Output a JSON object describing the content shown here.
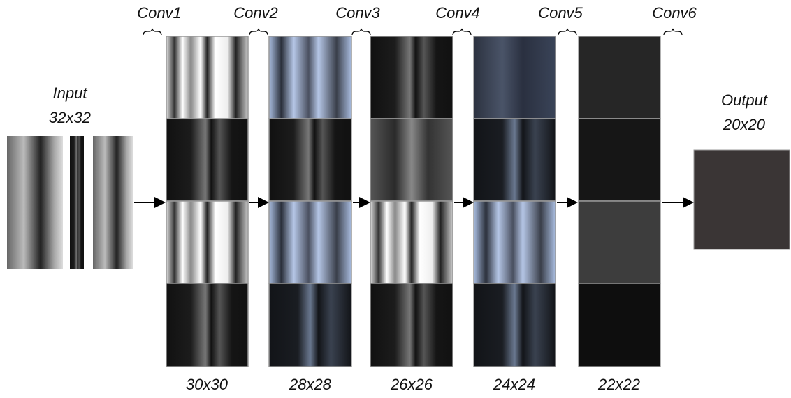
{
  "conv_labels": [
    "Conv1",
    "Conv2",
    "Conv3",
    "Conv4",
    "Conv5",
    "Conv6"
  ],
  "input": {
    "label": "Input",
    "size": "32x32"
  },
  "output": {
    "label": "Output",
    "size": "20x20"
  },
  "feature_maps": [
    "30x30",
    "28x28",
    "26x26",
    "24x24",
    "22x22"
  ]
}
